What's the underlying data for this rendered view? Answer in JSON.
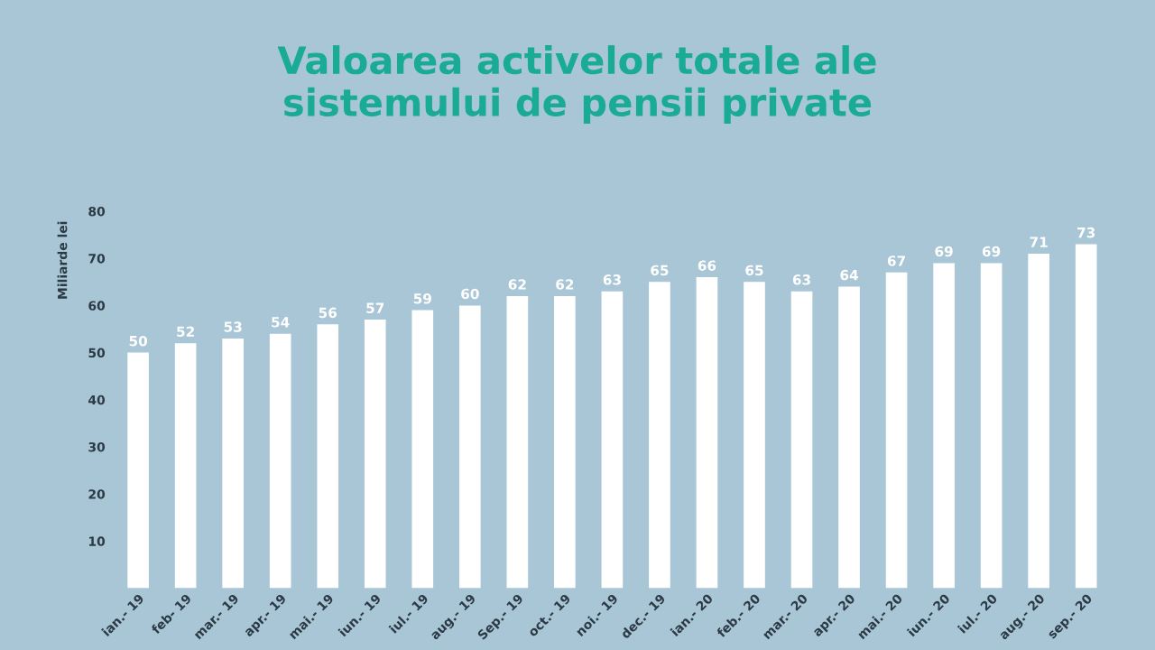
{
  "chart_data": {
    "type": "bar",
    "title": "Valoarea activelor totale ale\nsistemului de pensii private",
    "ylabel": "Miliarde lei",
    "categories": [
      "ian.- 19",
      "feb- 19",
      "mar.- 19",
      "apr.- 19",
      "mai.- 19",
      "iun.- 19",
      "iul.- 19",
      "aug.- 19",
      "Sep.- 19",
      "oct.- 19",
      "noi.- 19",
      "dec.- 19",
      "ian.- 20",
      "feb.- 20",
      "mar.- 20",
      "apr.- 20",
      "mai.- 20",
      "iun.- 20",
      "iul.- 20",
      "aug.- 20",
      "sep.- 20"
    ],
    "values": [
      50,
      52,
      53,
      54,
      56,
      57,
      59,
      60,
      62,
      62,
      63,
      65,
      66,
      65,
      63,
      64,
      67,
      69,
      69,
      71,
      73
    ],
    "color": "#ffffff",
    "data_labels": true,
    "ylim": [
      0,
      80
    ],
    "yticks": [
      10,
      20,
      30,
      40,
      50,
      60,
      70,
      80
    ],
    "grid": false,
    "legend": false
  }
}
